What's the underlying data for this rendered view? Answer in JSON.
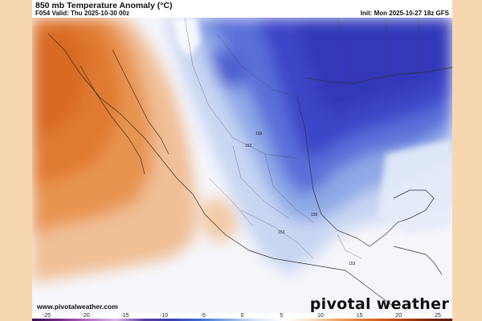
{
  "header": {
    "title": "850 mb Temperature Anomaly (°C)",
    "valid": "F054 Valid: Thu 2025-10-30 00z",
    "init": "Init: Mon 2025-10-27 18z GFS"
  },
  "footer": {
    "site": "www.pivotalweather.com",
    "brand": "pivotal weather"
  },
  "map_labels": {
    "label_156_a": "156",
    "label_153_a": "153",
    "label_156_b": "156",
    "label_153_b": "153",
    "label_153_c": "153"
  },
  "colorbar": {
    "ticks": [
      "-25",
      "-20",
      "-15",
      "-10",
      "-5",
      "0",
      "5",
      "10",
      "15",
      "20",
      "25"
    ]
  },
  "colors": {
    "warm_anomaly": "#e07a33",
    "cold_anomaly": "#3d44c8",
    "neutral": "#ffffff"
  }
}
